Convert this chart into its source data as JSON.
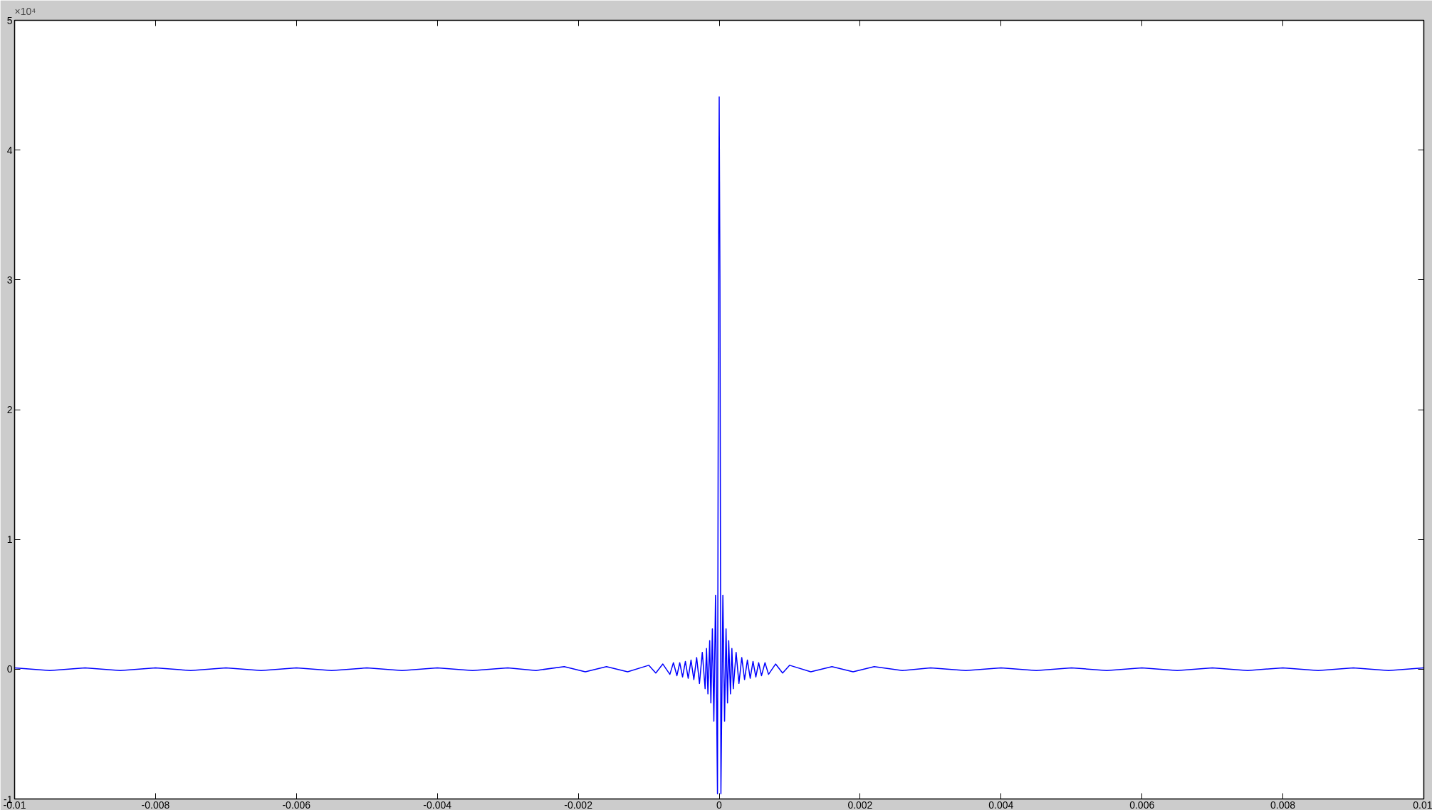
{
  "chart_data": {
    "type": "line",
    "annotations": [
      "×10⁴"
    ],
    "xlim": [
      -0.01,
      0.01
    ],
    "ylim": [
      -1,
      5
    ],
    "xticks": [
      -0.01,
      -0.008,
      -0.006,
      -0.004,
      -0.002,
      0,
      0.002,
      0.004,
      0.006,
      0.008,
      0.01
    ],
    "yticks": [
      -1,
      0,
      1,
      2,
      3,
      4,
      5
    ],
    "grid": false,
    "line_style": "solid",
    "series": [
      {
        "color": "#0000ff",
        "x": [
          -0.01,
          -0.0095,
          -0.009,
          -0.0085,
          -0.008,
          -0.0075,
          -0.007,
          -0.0065,
          -0.006,
          -0.0055,
          -0.005,
          -0.0045,
          -0.004,
          -0.0035,
          -0.003,
          -0.0026,
          -0.0022,
          -0.0019,
          -0.0016,
          -0.0013,
          -0.001,
          -0.0009,
          -0.0008,
          -0.0007,
          -0.00065,
          -0.0006,
          -0.00056,
          -0.00052,
          -0.00048,
          -0.00044,
          -0.0004,
          -0.00036,
          -0.00032,
          -0.00028,
          -0.00024,
          -0.0002,
          -0.00018,
          -0.00016,
          -0.000135,
          -0.000118,
          -9.7e-05,
          -7.6e-05,
          -5.2e-05,
          -2.43e-05,
          -1.04e-05,
          0,
          1.04e-05,
          2.43e-05,
          5.2e-05,
          7.6e-05,
          9.7e-05,
          0.000118,
          0.000135,
          0.00016,
          0.00018,
          0.0002,
          0.00024,
          0.00028,
          0.00032,
          0.00036,
          0.0004,
          0.00044,
          0.00048,
          0.00052,
          0.00056,
          0.0006,
          0.00065,
          0.0007,
          0.0008,
          0.0009,
          0.001,
          0.0013,
          0.0016,
          0.0019,
          0.0022,
          0.0026,
          0.003,
          0.0035,
          0.004,
          0.0045,
          0.005,
          0.0055,
          0.006,
          0.0065,
          0.007,
          0.0075,
          0.008,
          0.0085,
          0.009,
          0.0095,
          0.01
        ],
        "values": [
          0.01,
          -0.01,
          0.01,
          -0.01,
          0.01,
          -0.01,
          0.01,
          -0.01,
          0.01,
          -0.01,
          0.01,
          -0.01,
          0.01,
          -0.01,
          0.01,
          -0.01,
          0.02,
          -0.02,
          0.02,
          -0.02,
          0.03,
          -0.03,
          0.04,
          -0.04,
          0.05,
          -0.05,
          0.05,
          -0.06,
          0.06,
          -0.07,
          0.07,
          -0.08,
          0.09,
          -0.11,
          0.13,
          -0.15,
          0.16,
          -0.19,
          0.22,
          -0.26,
          0.31,
          -0.4,
          0.57,
          -0.96,
          3,
          4.41,
          3,
          -0.96,
          0.57,
          -0.4,
          0.31,
          -0.26,
          0.22,
          -0.19,
          0.16,
          -0.15,
          0.13,
          -0.11,
          0.09,
          -0.08,
          0.07,
          -0.07,
          0.06,
          -0.06,
          0.05,
          -0.05,
          0.05,
          -0.04,
          0.04,
          -0.03,
          0.03,
          -0.02,
          0.02,
          -0.02,
          0.02,
          -0.01,
          0.01,
          -0.01,
          0.01,
          -0.01,
          0.01,
          -0.01,
          0.01,
          -0.01,
          0.01,
          -0.01,
          0.01,
          -0.01,
          0.01,
          -0.01,
          0.01
        ]
      }
    ]
  }
}
